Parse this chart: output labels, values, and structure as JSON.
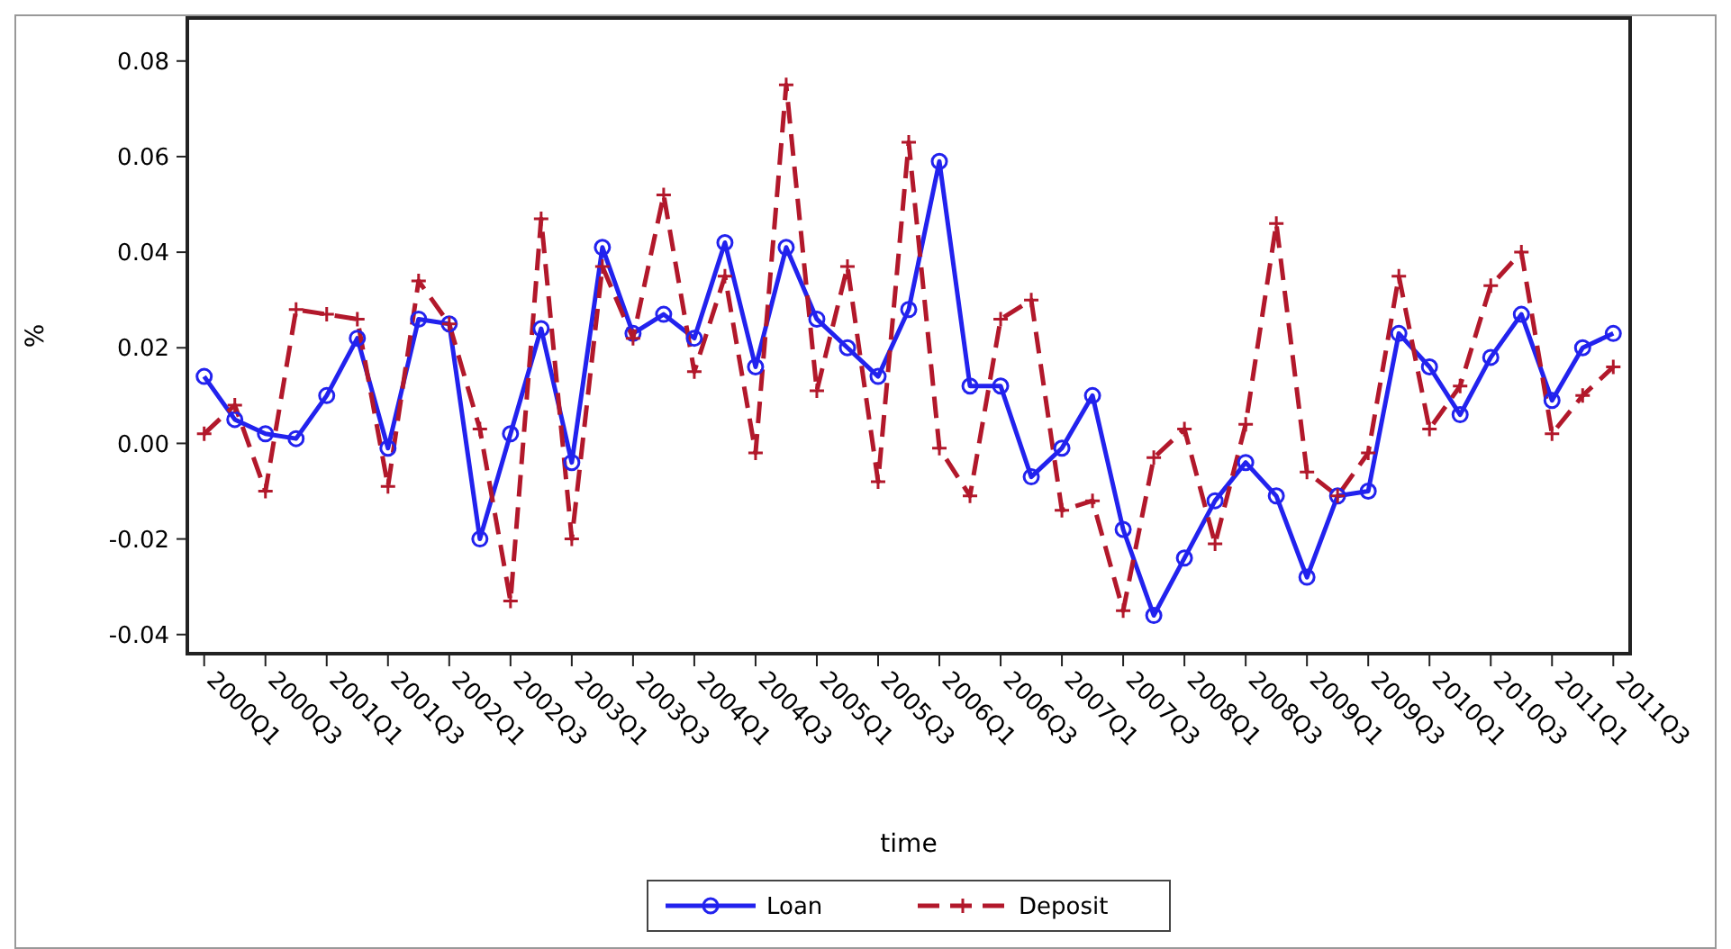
{
  "chart_data": {
    "type": "line",
    "xlabel": "time",
    "ylabel": "%",
    "categories": [
      "2000Q1",
      null,
      "2000Q3",
      null,
      "2001Q1",
      null,
      "2001Q3",
      null,
      "2002Q1",
      null,
      "2002Q3",
      null,
      "2003Q1",
      null,
      "2003Q3",
      null,
      "2004Q1",
      null,
      "2004Q3",
      null,
      "2005Q1",
      null,
      "2005Q3",
      null,
      "2006Q1",
      null,
      "2006Q3",
      null,
      "2007Q1",
      null,
      "2007Q3",
      null,
      "2008Q1",
      null,
      "2008Q3",
      null,
      "2009Q1",
      null,
      "2009Q3",
      null,
      "2010Q1",
      null,
      "2010Q3",
      null,
      "2011Q1",
      null,
      "2011Q3"
    ],
    "ylim": [
      -0.044,
      0.089
    ],
    "yticks": [
      {
        "value": -0.04,
        "label": "-0.04"
      },
      {
        "value": -0.02,
        "label": "-0.02"
      },
      {
        "value": 0,
        "label": "0.00"
      },
      {
        "value": 0.02,
        "label": "0.02"
      },
      {
        "value": 0.04,
        "label": "0.04"
      },
      {
        "value": 0.06,
        "label": "0.06"
      },
      {
        "value": 0.08,
        "label": "0.08"
      }
    ],
    "legend": "bottom",
    "series": [
      {
        "name": "Loan",
        "color": "#2222ee",
        "marker": "circle",
        "line_style": "solid",
        "values": [
          0.014,
          0.005,
          0.002,
          0.001,
          0.01,
          0.022,
          -0.001,
          0.026,
          0.025,
          -0.02,
          0.002,
          0.024,
          -0.004,
          0.041,
          0.023,
          0.027,
          0.022,
          0.042,
          0.016,
          0.041,
          0.026,
          0.02,
          0.014,
          0.028,
          0.059,
          0.012,
          0.012,
          -0.007,
          -0.001,
          0.01,
          -0.018,
          -0.036,
          -0.024,
          -0.012,
          -0.004,
          -0.011,
          -0.028,
          -0.011,
          -0.01,
          0.023,
          0.016,
          0.006,
          0.018,
          0.027,
          0.009,
          0.02,
          0.023
        ]
      },
      {
        "name": "Deposit",
        "color": "#b2182b",
        "marker": "cross",
        "line_style": "dashed",
        "values": [
          0.002,
          0.008,
          -0.01,
          0.028,
          0.027,
          0.026,
          -0.009,
          0.034,
          0.025,
          0.003,
          -0.033,
          0.047,
          -0.02,
          0.037,
          0.022,
          0.052,
          0.015,
          0.035,
          -0.002,
          0.075,
          0.011,
          0.037,
          -0.008,
          0.063,
          -0.001,
          -0.011,
          0.026,
          0.03,
          -0.014,
          -0.012,
          -0.035,
          -0.003,
          0.003,
          -0.021,
          0.004,
          0.046,
          -0.006,
          -0.011,
          -0.002,
          0.035,
          0.003,
          0.012,
          0.033,
          0.04,
          0.002,
          0.01,
          0.016
        ]
      }
    ]
  }
}
